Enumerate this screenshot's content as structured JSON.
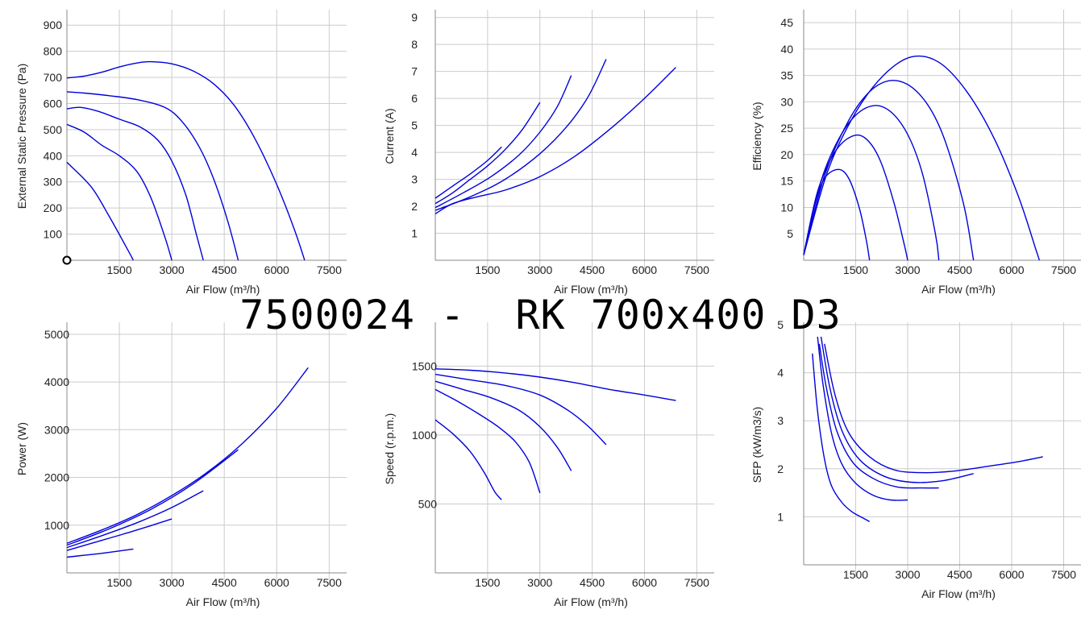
{
  "title": "7500024 -  RK 700x400 D3",
  "colors": {
    "curve": "#0000dd",
    "grid": "#cccccc",
    "axis": "#888888"
  },
  "chart_data": [
    {
      "type": "line",
      "ylabel": "External Static Pressure (Pa)",
      "xlabel": "Air Flow (m³/h)",
      "xlim": [
        0,
        8000
      ],
      "ylim": [
        0,
        950
      ],
      "xticks": [
        1500,
        3000,
        4500,
        6000,
        7500
      ],
      "yticks": [
        100,
        200,
        300,
        400,
        500,
        600,
        700,
        800,
        900
      ],
      "origin_marker": true,
      "series": [
        {
          "x": [
            0,
            700,
            1200,
            1700,
            1900
          ],
          "y": [
            375,
            280,
            170,
            50,
            0
          ]
        },
        {
          "x": [
            0,
            500,
            1000,
            1500,
            2000,
            2400,
            2800,
            3000
          ],
          "y": [
            520,
            490,
            440,
            400,
            340,
            240,
            90,
            0
          ]
        },
        {
          "x": [
            0,
            400,
            900,
            1500,
            2100,
            2600,
            3000,
            3400,
            3700,
            3900
          ],
          "y": [
            580,
            585,
            570,
            540,
            510,
            460,
            380,
            250,
            100,
            0
          ]
        },
        {
          "x": [
            0,
            500,
            1200,
            2000,
            2800,
            3300,
            3800,
            4200,
            4600,
            4900
          ],
          "y": [
            645,
            640,
            630,
            615,
            585,
            530,
            430,
            310,
            150,
            0
          ]
        },
        {
          "x": [
            0,
            500,
            1000,
            1500,
            2000,
            2400,
            3000,
            3600,
            4200,
            4800,
            5400,
            6000,
            6500,
            6800
          ],
          "y": [
            698,
            705,
            720,
            740,
            755,
            760,
            752,
            725,
            675,
            590,
            460,
            290,
            120,
            0
          ]
        }
      ]
    },
    {
      "type": "line",
      "ylabel": "Current (A)",
      "xlabel": "Air Flow (m³/h)",
      "xlim": [
        0,
        8000
      ],
      "ylim": [
        0,
        9.2
      ],
      "xticks": [
        1500,
        3000,
        4500,
        6000,
        7500
      ],
      "yticks": [
        1,
        2,
        3,
        4,
        5,
        6,
        7,
        8,
        9
      ],
      "series": [
        {
          "x": [
            0,
            500,
            1000,
            1500,
            1900
          ],
          "y": [
            2.3,
            2.75,
            3.2,
            3.7,
            4.2
          ]
        },
        {
          "x": [
            0,
            500,
            1000,
            1500,
            2000,
            2500,
            3000
          ],
          "y": [
            2.1,
            2.5,
            3.0,
            3.5,
            4.1,
            4.85,
            5.85
          ]
        },
        {
          "x": [
            0,
            800,
            1600,
            2400,
            3000,
            3500,
            3900
          ],
          "y": [
            1.95,
            2.5,
            3.1,
            3.9,
            4.75,
            5.7,
            6.85
          ]
        },
        {
          "x": [
            0,
            1000,
            2000,
            3000,
            3800,
            4400,
            4900
          ],
          "y": [
            1.85,
            2.35,
            3.0,
            3.95,
            5.0,
            6.1,
            7.45
          ]
        },
        {
          "x": [
            0,
            500,
            1200,
            2000,
            3000,
            4000,
            5000,
            6000,
            6900
          ],
          "y": [
            1.72,
            2.1,
            2.35,
            2.6,
            3.1,
            3.85,
            4.85,
            6.0,
            7.15
          ]
        }
      ]
    },
    {
      "type": "line",
      "ylabel": "Efficiency (%)",
      "xlabel": "Air Flow (m³/h)",
      "xlim": [
        0,
        8000
      ],
      "ylim": [
        0,
        47
      ],
      "xticks": [
        1500,
        3000,
        4500,
        6000,
        7500
      ],
      "yticks": [
        5,
        10,
        15,
        20,
        25,
        30,
        35,
        40,
        45
      ],
      "series": [
        {
          "x": [
            0,
            300,
            600,
            1000,
            1300,
            1600,
            1800,
            1900
          ],
          "y": [
            1,
            10,
            15.5,
            17.2,
            15.5,
            10,
            4,
            0
          ]
        },
        {
          "x": [
            0,
            400,
            900,
            1400,
            1800,
            2200,
            2600,
            2900,
            3000
          ],
          "y": [
            1,
            13,
            20.5,
            23.5,
            23,
            19,
            11,
            3,
            0
          ]
        },
        {
          "x": [
            0,
            500,
            1100,
            1700,
            2300,
            2900,
            3400,
            3800,
            3900
          ],
          "y": [
            1,
            15,
            24,
            28.5,
            29,
            25,
            17,
            5,
            0
          ]
        },
        {
          "x": [
            0,
            600,
            1300,
            2000,
            2700,
            3400,
            4000,
            4600,
            4900
          ],
          "y": [
            1,
            16,
            26.5,
            32.5,
            34,
            31,
            24,
            11,
            0
          ]
        },
        {
          "x": [
            0,
            700,
            1500,
            2300,
            3100,
            3900,
            4700,
            5500,
            6200,
            6700,
            6800
          ],
          "y": [
            1,
            17,
            28,
            35,
            38.5,
            37.5,
            32,
            23,
            12,
            2,
            0
          ]
        }
      ]
    },
    {
      "type": "line",
      "ylabel": "Power (W)",
      "xlabel": "Air Flow (m³/h)",
      "xlim": [
        0,
        8000
      ],
      "ylim": [
        0,
        5200
      ],
      "xticks": [
        1500,
        3000,
        4500,
        6000,
        7500
      ],
      "yticks": [
        1000,
        2000,
        3000,
        4000,
        5000
      ],
      "series": [
        {
          "x": [
            0,
            500,
            1000,
            1500,
            1900
          ],
          "y": [
            330,
            370,
            410,
            460,
            500
          ]
        },
        {
          "x": [
            0,
            800,
            1600,
            2400,
            3000
          ],
          "y": [
            470,
            640,
            810,
            990,
            1130
          ]
        },
        {
          "x": [
            0,
            1000,
            2000,
            3000,
            3900
          ],
          "y": [
            530,
            780,
            1050,
            1370,
            1720
          ]
        },
        {
          "x": [
            0,
            1200,
            2400,
            3600,
            4900
          ],
          "y": [
            580,
            920,
            1330,
            1860,
            2580
          ]
        },
        {
          "x": [
            0,
            1000,
            2000,
            3000,
            4000,
            5000,
            6000,
            6900
          ],
          "y": [
            620,
            900,
            1220,
            1620,
            2100,
            2700,
            3450,
            4300
          ]
        }
      ]
    },
    {
      "type": "line",
      "ylabel": "Speed (r.p.m.)",
      "xlabel": "Air Flow (m³/h)",
      "xlim": [
        0,
        8000
      ],
      "ylim": [
        0,
        1800
      ],
      "xticks": [
        1500,
        3000,
        4500,
        6000,
        7500
      ],
      "yticks": [
        500,
        1000,
        1500
      ],
      "series": [
        {
          "x": [
            0,
            500,
            1000,
            1400,
            1700,
            1900
          ],
          "y": [
            1110,
            1010,
            880,
            730,
            590,
            530
          ]
        },
        {
          "x": [
            0,
            600,
            1200,
            1800,
            2300,
            2700,
            3000
          ],
          "y": [
            1330,
            1250,
            1160,
            1060,
            950,
            800,
            580
          ]
        },
        {
          "x": [
            0,
            800,
            1600,
            2400,
            3000,
            3500,
            3900
          ],
          "y": [
            1390,
            1330,
            1270,
            1180,
            1060,
            910,
            740
          ]
        },
        {
          "x": [
            0,
            1000,
            2000,
            3000,
            3800,
            4400,
            4900
          ],
          "y": [
            1440,
            1400,
            1360,
            1290,
            1180,
            1060,
            930
          ]
        },
        {
          "x": [
            0,
            1000,
            2000,
            3000,
            4000,
            5000,
            6000,
            6900
          ],
          "y": [
            1480,
            1470,
            1450,
            1420,
            1380,
            1330,
            1290,
            1250
          ]
        }
      ]
    },
    {
      "type": "line",
      "ylabel": "SFP (kW/m3/s)",
      "xlabel": "Air Flow (m³/h)",
      "xlim": [
        0,
        8000
      ],
      "ylim": [
        0,
        5
      ],
      "xticks": [
        1500,
        3000,
        4500,
        6000,
        7500
      ],
      "yticks": [
        1,
        2,
        3,
        4,
        5
      ],
      "series": [
        {
          "x": [
            250,
            400,
            600,
            800,
            1100,
            1400,
            1700,
            1900
          ],
          "y": [
            4.4,
            3.2,
            2.2,
            1.65,
            1.3,
            1.1,
            0.98,
            0.9
          ]
        },
        {
          "x": [
            400,
            550,
            800,
            1100,
            1500,
            2000,
            2500,
            3000
          ],
          "y": [
            4.75,
            3.8,
            2.75,
            2.1,
            1.7,
            1.45,
            1.35,
            1.35
          ]
        },
        {
          "x": [
            450,
            650,
            950,
            1400,
            2000,
            2700,
            3400,
            3900
          ],
          "y": [
            4.6,
            3.7,
            2.8,
            2.15,
            1.8,
            1.62,
            1.6,
            1.6
          ]
        },
        {
          "x": [
            500,
            750,
            1100,
            1600,
            2300,
            3100,
            4000,
            4900
          ],
          "y": [
            4.75,
            3.7,
            2.8,
            2.2,
            1.85,
            1.72,
            1.75,
            1.9
          ]
        },
        {
          "x": [
            600,
            900,
            1300,
            1900,
            2600,
            3400,
            4300,
            5300,
            6200,
            6900
          ],
          "y": [
            4.6,
            3.55,
            2.75,
            2.25,
            1.98,
            1.92,
            1.95,
            2.05,
            2.15,
            2.25
          ]
        }
      ]
    }
  ]
}
